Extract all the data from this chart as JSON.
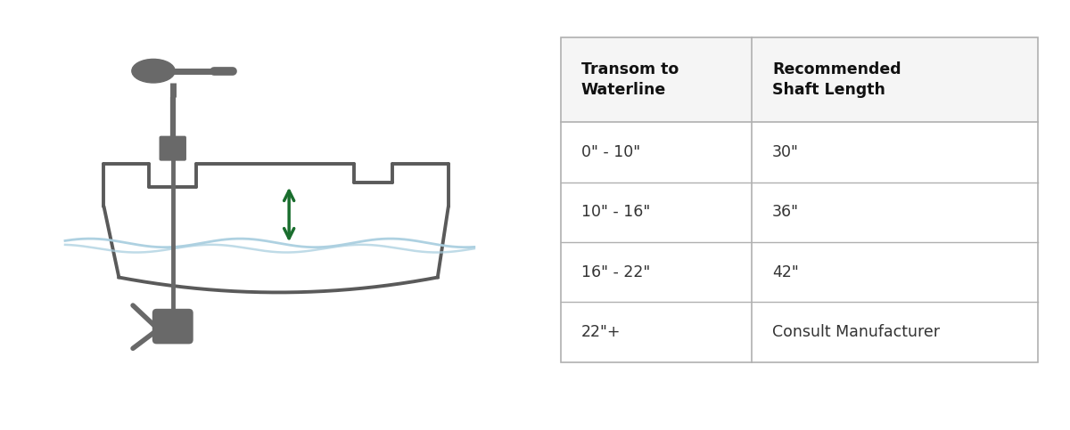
{
  "table_headers": [
    "Transom to\nWaterline",
    "Recommended\nShaft Length"
  ],
  "table_rows": [
    [
      "0\" - 10\"",
      "30\""
    ],
    [
      "10\" - 16\"",
      "36\""
    ],
    [
      "16\" - 22\"",
      "42\""
    ],
    [
      "22\"+",
      "Consult Manufacturer"
    ]
  ],
  "bg_color": "#ffffff",
  "border_color": "#b0b0b0",
  "header_text_color": "#111111",
  "row_text_color": "#333333",
  "boat_color": "#5a5a5a",
  "motor_color": "#696969",
  "arrow_color": "#1a6e2e",
  "water_color": "#aacfe0",
  "header_fontsize": 12.5,
  "cell_fontsize": 12.5
}
